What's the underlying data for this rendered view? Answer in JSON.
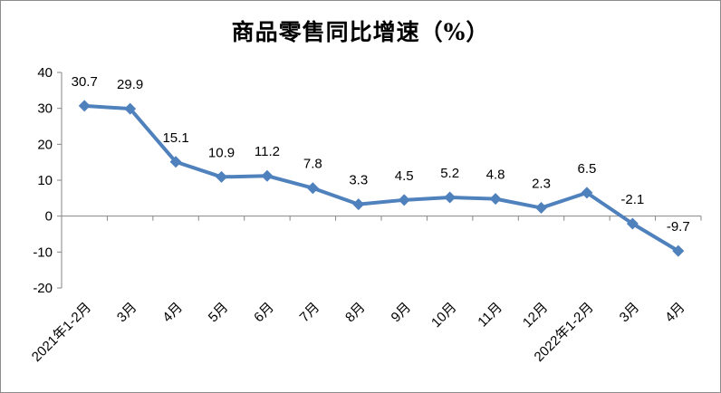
{
  "chart_data": {
    "type": "line",
    "title": "商品零售同比增速（%）",
    "categories": [
      "2021年1-2月",
      "3月",
      "4月",
      "5月",
      "6月",
      "7月",
      "8月",
      "9月",
      "10月",
      "11月",
      "12月",
      "2022年1-2月",
      "3月",
      "4月"
    ],
    "series": [
      {
        "values": [
          30.7,
          29.9,
          15.1,
          10.9,
          11.2,
          7.8,
          3.3,
          4.5,
          5.2,
          4.8,
          2.3,
          6.5,
          -2.1,
          -9.7
        ],
        "data_labels": [
          "30.7",
          "29.9",
          "15.1",
          "10.9",
          "11.2",
          "7.8",
          "3.3",
          "4.5",
          "5.2",
          "4.8",
          "2.3",
          "6.5",
          "-2.1",
          "-9.7"
        ]
      }
    ],
    "ylim": [
      -20,
      40
    ],
    "yticks": [
      "40",
      "30",
      "20",
      "10",
      "0",
      "-10",
      "-20"
    ],
    "grid": false,
    "legend": "none",
    "colors": {
      "line": "#4f81bd",
      "marker": "#4f81bd",
      "axis": "#868686"
    }
  }
}
